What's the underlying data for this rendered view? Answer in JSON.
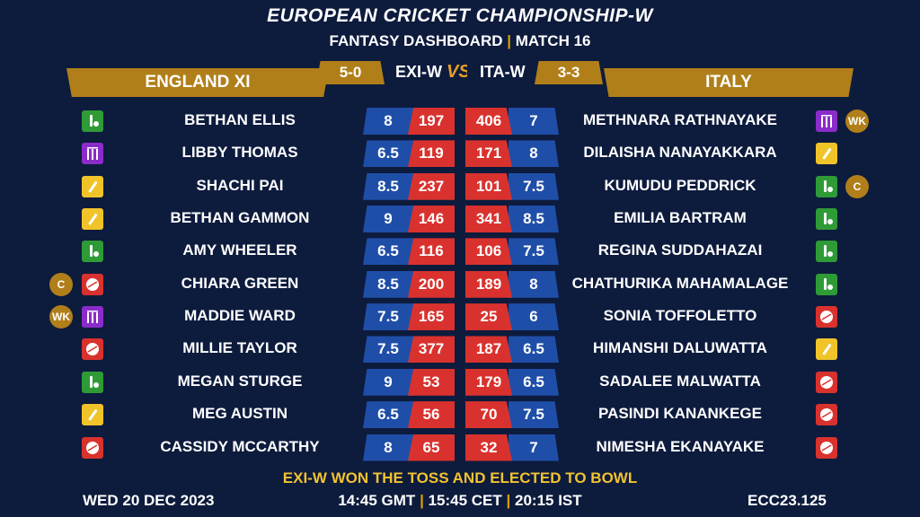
{
  "header": {
    "title": "EUROPEAN CRICKET CHAMPIONSHIP-W",
    "subtitle_left": "FANTASY DASHBOARD",
    "subtitle_sep": "|",
    "subtitle_right": "MATCH 16"
  },
  "match": {
    "team_left": "ENGLAND XI",
    "team_right": "ITALY",
    "code_left": "EXI-W",
    "code_right": "ITA-W",
    "score_left": "5-0",
    "score_right": "3-3",
    "vs": "VS"
  },
  "colors": {
    "background": "#0d1b3d",
    "gold": "#b07f1a",
    "credit_blue": "#1f4ea8",
    "points_red": "#d9322e",
    "batter_yellow": "#f0c428",
    "allrounder_green": "#2e9b36",
    "keeper_purple": "#8a2cc9"
  },
  "left_players": [
    {
      "name": "BETHAN ELLIS",
      "role": "allrounder-icon",
      "credit": "8",
      "points": "197",
      "tag": ""
    },
    {
      "name": "LIBBY THOMAS",
      "role": "wicketkeeper-icon",
      "credit": "6.5",
      "points": "119",
      "tag": ""
    },
    {
      "name": "SHACHI PAI",
      "role": "batter-icon",
      "credit": "8.5",
      "points": "237",
      "tag": ""
    },
    {
      "name": "BETHAN GAMMON",
      "role": "batter-icon",
      "credit": "9",
      "points": "146",
      "tag": ""
    },
    {
      "name": "AMY WHEELER",
      "role": "allrounder-icon",
      "credit": "6.5",
      "points": "116",
      "tag": ""
    },
    {
      "name": "CHIARA GREEN",
      "role": "bowler-icon",
      "credit": "8.5",
      "points": "200",
      "tag": "C"
    },
    {
      "name": "MADDIE WARD",
      "role": "wicketkeeper-icon",
      "credit": "7.5",
      "points": "165",
      "tag": "WK"
    },
    {
      "name": "MILLIE TAYLOR",
      "role": "bowler-icon",
      "credit": "7.5",
      "points": "377",
      "tag": ""
    },
    {
      "name": "MEGAN STURGE",
      "role": "allrounder-icon",
      "credit": "9",
      "points": "53",
      "tag": ""
    },
    {
      "name": "MEG AUSTIN",
      "role": "batter-icon",
      "credit": "6.5",
      "points": "56",
      "tag": ""
    },
    {
      "name": "CASSIDY MCCARTHY",
      "role": "bowler-icon",
      "credit": "8",
      "points": "65",
      "tag": ""
    }
  ],
  "right_players": [
    {
      "name": "METHNARA RATHNAYAKE",
      "role": "wicketkeeper-icon",
      "credit": "7",
      "points": "406",
      "tag": "WK"
    },
    {
      "name": "DILAISHA NANAYAKKARA",
      "role": "batter-icon",
      "credit": "8",
      "points": "171",
      "tag": ""
    },
    {
      "name": "KUMUDU PEDDRICK",
      "role": "allrounder-icon",
      "credit": "7.5",
      "points": "101",
      "tag": "C"
    },
    {
      "name": "EMILIA BARTRAM",
      "role": "allrounder-icon",
      "credit": "8.5",
      "points": "341",
      "tag": ""
    },
    {
      "name": "REGINA SUDDAHAZAI",
      "role": "allrounder-icon",
      "credit": "7.5",
      "points": "106",
      "tag": ""
    },
    {
      "name": "CHATHURIKA MAHAMALAGE",
      "role": "allrounder-icon",
      "credit": "8",
      "points": "189",
      "tag": ""
    },
    {
      "name": "SONIA TOFFOLETTO",
      "role": "bowler-icon",
      "credit": "6",
      "points": "25",
      "tag": ""
    },
    {
      "name": "HIMANSHI DALUWATTA",
      "role": "batter-icon",
      "credit": "6.5",
      "points": "187",
      "tag": ""
    },
    {
      "name": "SADALEE MALWATTA",
      "role": "bowler-icon",
      "credit": "6.5",
      "points": "179",
      "tag": ""
    },
    {
      "name": "PASINDI KANANKEGE",
      "role": "bowler-icon",
      "credit": "7.5",
      "points": "70",
      "tag": ""
    },
    {
      "name": "NIMESHA EKANAYAKE",
      "role": "bowler-icon",
      "credit": "7",
      "points": "32",
      "tag": ""
    }
  ],
  "footer": {
    "toss": "EXI-W WON THE TOSS AND ELECTED TO BOWL",
    "date": "WED 20 DEC 2023",
    "time_gmt": "14:45 GMT",
    "time_cet": "15:45 CET",
    "time_ist": "20:15 IST",
    "time_sep": "|",
    "code": "ECC23.125"
  }
}
